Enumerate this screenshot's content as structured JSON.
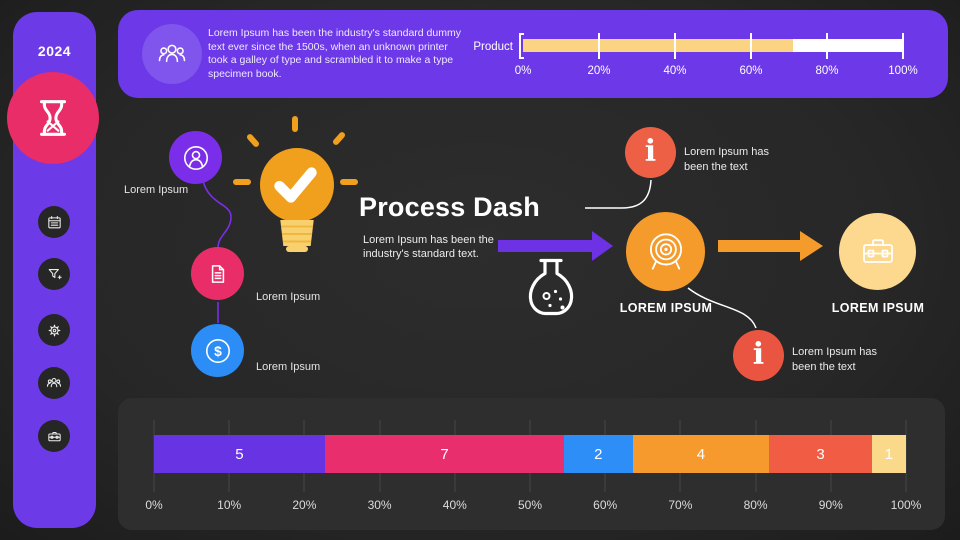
{
  "sidebar": {
    "year": "2024",
    "nav_icons": [
      "hourglass",
      "calendar",
      "filter-plus",
      "settings",
      "team",
      "toolbox"
    ]
  },
  "banner": {
    "icon": "people-group",
    "paragraph": "Lorem Ipsum has been the industry's standard dummy text ever since the 1500s, when an unknown printer took a galley of type and scrambled it to make a type specimen book."
  },
  "process": {
    "title": "Process Dash",
    "subtitle": "Lorem Ipsum has been the industry's standard text.",
    "milestones": [
      {
        "icon": "user",
        "label": "Lorem Ipsum",
        "color": "#7b2ee9"
      },
      {
        "icon": "document",
        "label": "Lorem Ipsum",
        "color": "#e82d68"
      },
      {
        "icon": "dollar",
        "label": "Lorem Ipsum",
        "color": "#2b8df5"
      }
    ],
    "steps": [
      {
        "icon": "target",
        "label": "LOREM IPSUM",
        "color": "#f59b2b"
      },
      {
        "icon": "briefcase",
        "label": "LOREM IPSUM",
        "color": "#fcd98e"
      }
    ],
    "callouts": [
      {
        "icon": "info",
        "text": "Lorem Ipsum has been the text",
        "color": "#ee6045"
      },
      {
        "icon": "info",
        "text": "Lorem Ipsum has been the text",
        "color": "#e95540"
      }
    ],
    "accent_arrows": {
      "purple": "#6d32e3",
      "orange": "#f59b2b"
    }
  },
  "chart_data": [
    {
      "type": "bar",
      "orientation": "horizontal",
      "title": "Product progress",
      "categories": [
        "Product"
      ],
      "values": [
        71
      ],
      "xlim": [
        0,
        100
      ],
      "x_ticks": [
        "0%",
        "20%",
        "40%",
        "60%",
        "80%",
        "100%"
      ],
      "bar_color": "#fbd483",
      "track_color": "#ffffff",
      "grid": false,
      "legend": "none"
    },
    {
      "type": "bar",
      "subtype": "stacked-horizontal",
      "title": "Process distribution",
      "segments": [
        {
          "value": 5,
          "color": "#6733e3"
        },
        {
          "value": 7,
          "color": "#e92e6e"
        },
        {
          "value": 2,
          "color": "#2e8ef7"
        },
        {
          "value": 4,
          "color": "#f79a2e"
        },
        {
          "value": 3,
          "color": "#f05c44"
        },
        {
          "value": 1,
          "color": "#fbd98b"
        }
      ],
      "total": 22,
      "xlim": [
        0,
        100
      ],
      "x_ticks": [
        "0%",
        "10%",
        "20%",
        "30%",
        "40%",
        "50%",
        "60%",
        "70%",
        "80%",
        "90%",
        "100%"
      ],
      "grid": true,
      "legend": "none"
    }
  ]
}
